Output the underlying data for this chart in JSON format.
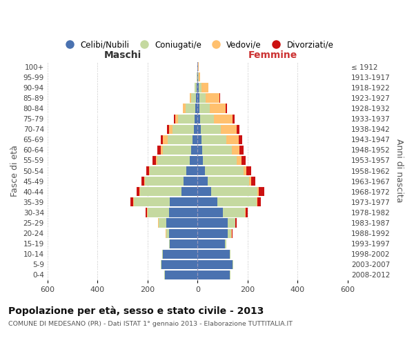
{
  "age_groups": [
    "0-4",
    "5-9",
    "10-14",
    "15-19",
    "20-24",
    "25-29",
    "30-34",
    "35-39",
    "40-44",
    "45-49",
    "50-54",
    "55-59",
    "60-64",
    "65-69",
    "70-74",
    "75-79",
    "80-84",
    "85-89",
    "90-94",
    "95-99",
    "100+"
  ],
  "birth_years": [
    "2008-2012",
    "2003-2007",
    "1998-2002",
    "1993-1997",
    "1988-1992",
    "1983-1987",
    "1978-1982",
    "1973-1977",
    "1968-1972",
    "1963-1967",
    "1958-1962",
    "1953-1957",
    "1948-1952",
    "1943-1947",
    "1938-1942",
    "1933-1937",
    "1928-1932",
    "1923-1927",
    "1918-1922",
    "1913-1917",
    "≤ 1912"
  ],
  "males_celibi": [
    130,
    145,
    140,
    110,
    115,
    125,
    115,
    110,
    65,
    55,
    45,
    30,
    25,
    20,
    15,
    12,
    8,
    5,
    3,
    2,
    2
  ],
  "males_coniugati": [
    2,
    2,
    2,
    5,
    10,
    30,
    85,
    145,
    165,
    155,
    145,
    130,
    115,
    100,
    85,
    65,
    40,
    20,
    8,
    2,
    0
  ],
  "males_vedovi": [
    0,
    0,
    0,
    0,
    2,
    2,
    2,
    2,
    2,
    3,
    3,
    5,
    8,
    18,
    15,
    12,
    10,
    5,
    2,
    0,
    0
  ],
  "males_divorziati": [
    0,
    0,
    0,
    0,
    2,
    2,
    5,
    10,
    12,
    10,
    12,
    15,
    12,
    8,
    8,
    5,
    2,
    0,
    0,
    0,
    0
  ],
  "females_nubili": [
    130,
    140,
    130,
    110,
    120,
    120,
    100,
    80,
    55,
    40,
    30,
    20,
    18,
    15,
    12,
    10,
    8,
    8,
    5,
    2,
    2
  ],
  "females_coniugate": [
    2,
    2,
    2,
    5,
    15,
    30,
    90,
    155,
    185,
    165,
    155,
    135,
    120,
    100,
    80,
    55,
    40,
    25,
    12,
    2,
    0
  ],
  "females_vedove": [
    0,
    0,
    0,
    0,
    2,
    2,
    2,
    3,
    5,
    8,
    10,
    20,
    30,
    50,
    65,
    75,
    65,
    55,
    25,
    5,
    2
  ],
  "females_divorziate": [
    0,
    0,
    0,
    0,
    2,
    3,
    8,
    15,
    22,
    18,
    18,
    18,
    15,
    12,
    10,
    8,
    5,
    2,
    0,
    0,
    0
  ],
  "color_celibi": "#4a72b0",
  "color_coniugati": "#c5d9a0",
  "color_vedovi": "#ffc06e",
  "color_divorziati": "#cc1111",
  "legend_labels": [
    "Celibi/Nubili",
    "Coniugati/e",
    "Vedovi/e",
    "Divorziati/e"
  ],
  "title": "Popolazione per età, sesso e stato civile - 2013",
  "subtitle": "COMUNE DI MEDESANO (PR) - Dati ISTAT 1° gennaio 2013 - Elaborazione TUTTITALIA.IT",
  "label_maschi": "Maschi",
  "label_femmine": "Femmine",
  "label_fasce": "Fasce di età",
  "label_anni": "Anni di nascita",
  "xlim": 600,
  "bg": "#ffffff"
}
